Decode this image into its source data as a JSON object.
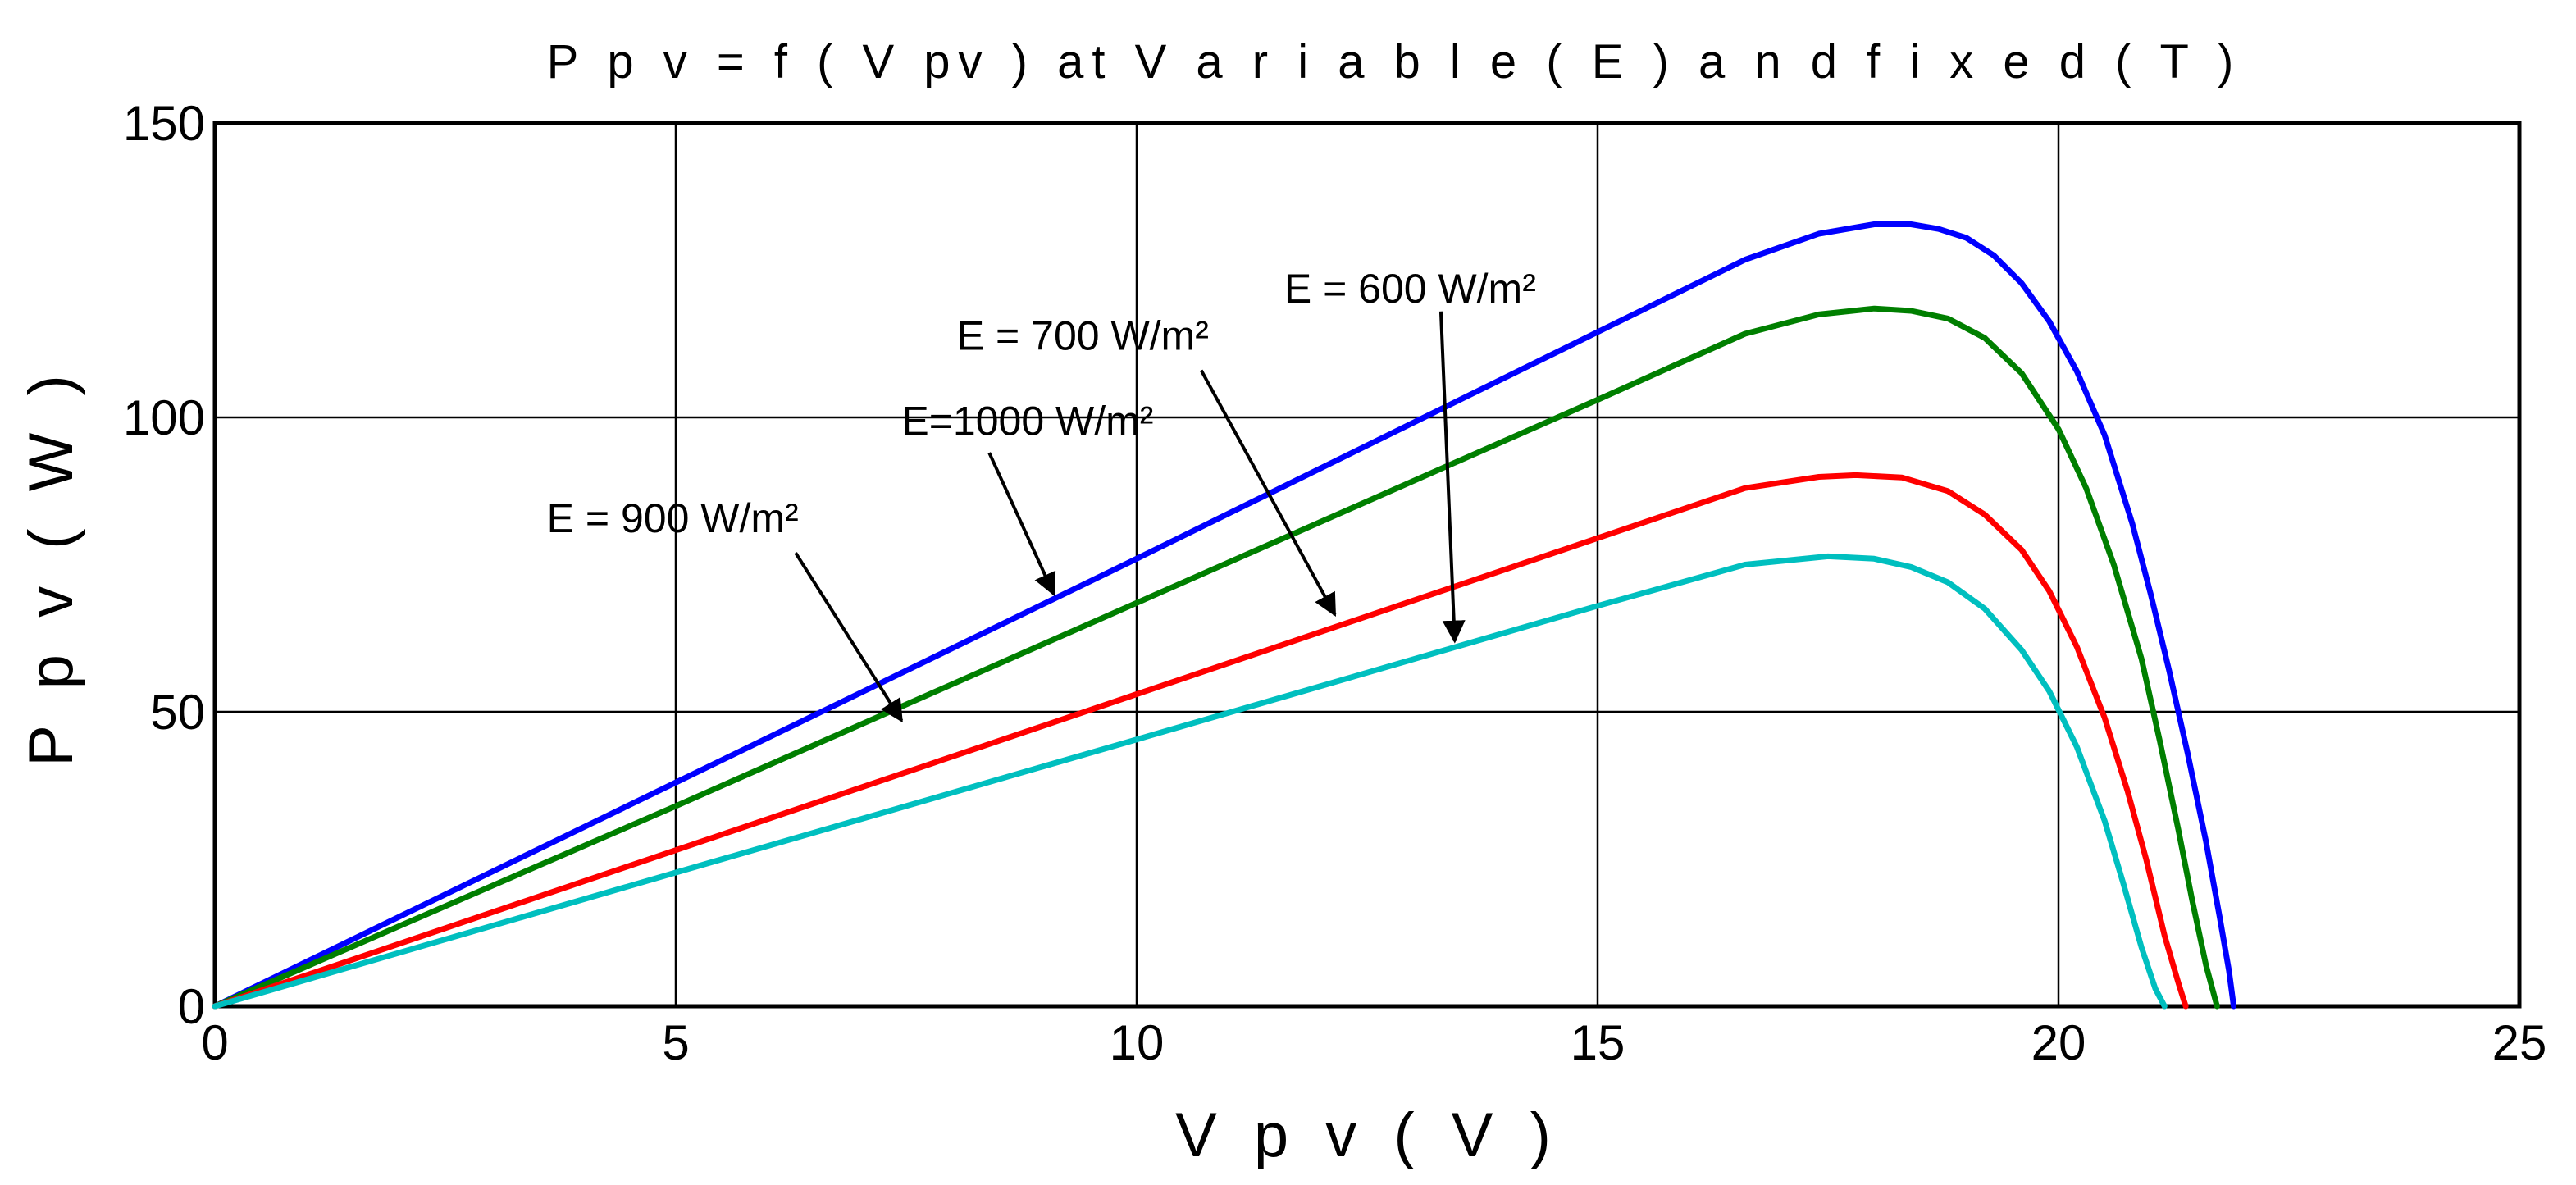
{
  "chart_data": {
    "type": "line",
    "title": "P p v = f ( V pv ) at  V a r i a b l e  ( E ) a n d f i x e d ( T )",
    "xlabel": "V p v ( V )",
    "ylabel": "P p v  (  W  )",
    "xlim": [
      0,
      25
    ],
    "ylim": [
      0,
      150
    ],
    "xticks": [
      0,
      5,
      10,
      15,
      20,
      25
    ],
    "yticks": [
      0,
      50,
      100,
      150
    ],
    "grid": true,
    "series": [
      {
        "name": "E=1000 W/m²",
        "color": "#0000ff",
        "x": [
          0,
          5,
          10,
          15,
          16.6,
          17.4,
          18,
          18.4,
          18.7,
          19.0,
          19.3,
          19.6,
          19.9,
          20.2,
          20.5,
          20.8,
          21.0,
          21.2,
          21.4,
          21.6,
          21.75,
          21.85,
          21.9
        ],
        "y": [
          0,
          38,
          76,
          114.5,
          126.8,
          131.2,
          132.8,
          132.8,
          132.0,
          130.5,
          127.5,
          122.8,
          116.3,
          107.8,
          97,
          82,
          70,
          57,
          43,
          28,
          15,
          6,
          0
        ]
      },
      {
        "name": "E = 900 W/m²",
        "color": "#007f00",
        "x": [
          0,
          5,
          10,
          15,
          16.6,
          17.4,
          18,
          18.4,
          18.8,
          19.2,
          19.6,
          20.0,
          20.3,
          20.6,
          20.9,
          21.1,
          21.3,
          21.45,
          21.6,
          21.72
        ],
        "y": [
          0,
          34,
          68.5,
          103,
          114.2,
          117.5,
          118.5,
          118.1,
          116.8,
          113.5,
          107.5,
          98,
          88,
          75,
          59,
          45,
          30,
          18,
          7,
          0
        ]
      },
      {
        "name": "E = 700 W/m²",
        "color": "#ff0000",
        "x": [
          0,
          5,
          10,
          15,
          16.6,
          17.4,
          17.8,
          18.3,
          18.8,
          19.2,
          19.6,
          19.9,
          20.2,
          20.5,
          20.75,
          20.95,
          21.15,
          21.3,
          21.38
        ],
        "y": [
          0,
          26.5,
          53,
          79.5,
          88,
          89.9,
          90.2,
          89.8,
          87.5,
          83.5,
          77.5,
          70.5,
          61,
          49,
          36.5,
          25,
          12,
          4,
          0
        ]
      },
      {
        "name": "E = 600 W/m²",
        "color": "#00bfbf",
        "x": [
          0,
          5,
          10,
          15,
          16.6,
          17.5,
          18.0,
          18.4,
          18.8,
          19.2,
          19.6,
          19.9,
          20.2,
          20.5,
          20.7,
          20.9,
          21.05,
          21.15
        ],
        "y": [
          0,
          22.7,
          45.3,
          68,
          75,
          76.4,
          76.0,
          74.6,
          72,
          67.5,
          60.5,
          53.5,
          44,
          31.5,
          21,
          10,
          3,
          0
        ]
      }
    ],
    "annotations": [
      {
        "text": "E=1000 W/m²",
        "text_x": 7.45,
        "text_y": 97,
        "arrow_from": [
          8.4,
          94
        ],
        "arrow_to": [
          9.1,
          70
        ]
      },
      {
        "text": "E = 900 W/m²",
        "text_x": 3.6,
        "text_y": 80.5,
        "arrow_from": [
          6.3,
          77
        ],
        "arrow_to": [
          7.45,
          48.5
        ]
      },
      {
        "text": "E = 700 W/m²",
        "text_x": 8.05,
        "text_y": 111.5,
        "arrow_from": [
          10.7,
          108
        ],
        "arrow_to": [
          12.15,
          66.5
        ]
      },
      {
        "text": "E = 600 W/m²",
        "text_x": 11.6,
        "text_y": 119.5,
        "arrow_from": [
          13.3,
          118
        ],
        "arrow_to": [
          13.45,
          62
        ]
      }
    ]
  }
}
